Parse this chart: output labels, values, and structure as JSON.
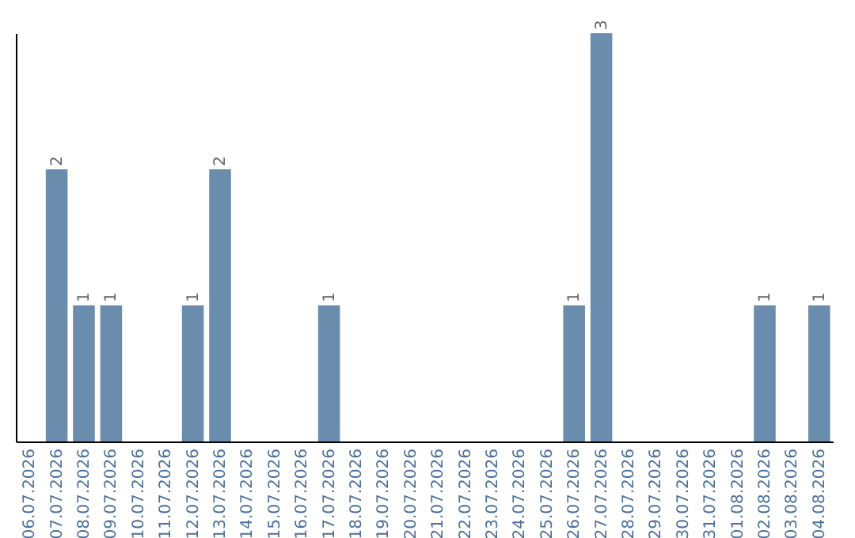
{
  "chart_data": {
    "type": "bar",
    "categories": [
      "06.07.2026",
      "07.07.2026",
      "08.07.2026",
      "09.07.2026",
      "10.07.2026",
      "11.07.2026",
      "12.07.2026",
      "13.07.2026",
      "14.07.2026",
      "15.07.2026",
      "16.07.2026",
      "17.07.2026",
      "18.07.2026",
      "19.07.2026",
      "20.07.2026",
      "21.07.2026",
      "22.07.2026",
      "23.07.2026",
      "24.07.2026",
      "25.07.2026",
      "26.07.2026",
      "27.07.2026",
      "28.07.2026",
      "29.07.2026",
      "30.07.2026",
      "31.07.2026",
      "01.08.2026",
      "02.08.2026",
      "03.08.2026",
      "04.08.2026"
    ],
    "values": [
      0,
      2,
      1,
      1,
      0,
      0,
      1,
      2,
      0,
      0,
      0,
      1,
      0,
      0,
      0,
      0,
      0,
      0,
      0,
      0,
      1,
      3,
      0,
      0,
      0,
      0,
      0,
      1,
      0,
      1
    ],
    "value_labels": [
      null,
      "2",
      "1",
      "1",
      null,
      null,
      "1",
      "2",
      null,
      null,
      null,
      "1",
      null,
      null,
      null,
      null,
      null,
      null,
      null,
      null,
      "1",
      "3",
      null,
      null,
      null,
      null,
      null,
      "1",
      null,
      "1"
    ],
    "color": "#6a8cad",
    "tick_labels": "x",
    "grid": false
  }
}
